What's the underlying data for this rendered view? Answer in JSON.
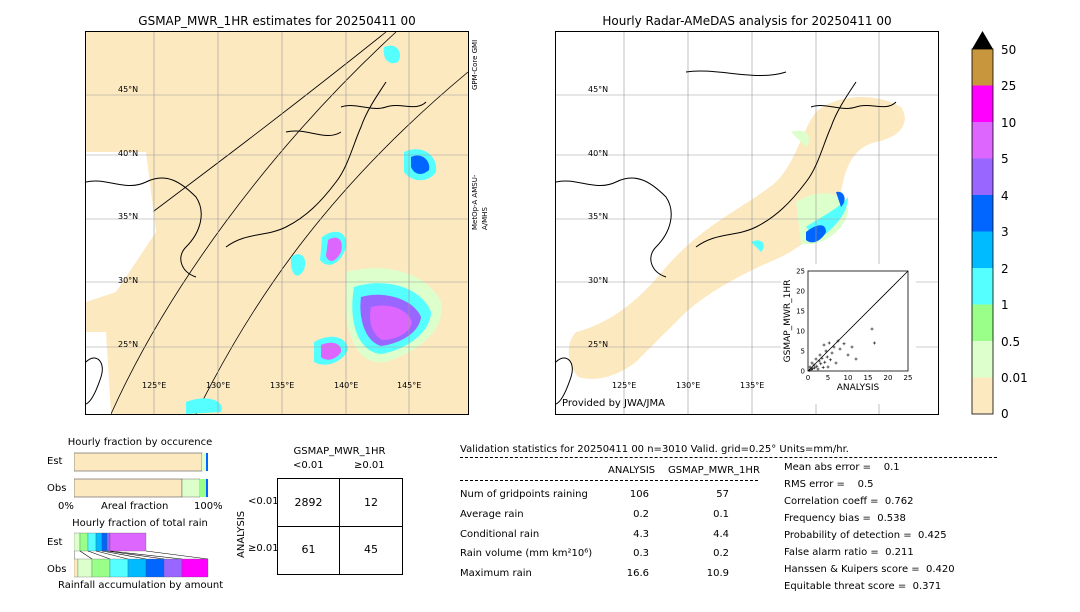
{
  "left_map": {
    "title": "GSMAP_MWR_1HR estimates for 20250411 00",
    "lat_labels": [
      "45°N",
      "40°N",
      "35°N",
      "30°N",
      "25°N"
    ],
    "lon_labels": [
      "125°E",
      "130°E",
      "135°E",
      "140°E",
      "145°E"
    ],
    "side_labels": [
      "GPM-Core GMI",
      "MetOp-A AMSU-A/MHS"
    ]
  },
  "right_map": {
    "title": "Hourly Radar-AMeDAS analysis for 20250411 00",
    "lat_labels": [
      "45°N",
      "40°N",
      "35°N",
      "30°N",
      "25°N"
    ],
    "lon_labels": [
      "125°E",
      "130°E",
      "135°E"
    ],
    "provider": "Provided by JWA/JMA"
  },
  "colorbar": {
    "labels": [
      "50",
      "25",
      "10",
      "5",
      "4",
      "3",
      "2",
      "1",
      "0.5",
      "0.01",
      "0"
    ],
    "colors": [
      "#c8963c",
      "#ff00ff",
      "#dd66ff",
      "#9966ff",
      "#0066ff",
      "#00bbff",
      "#55ffff",
      "#99ff88",
      "#ddffcc",
      "#fde9c0"
    ]
  },
  "chart_data": [
    {
      "type": "scatter",
      "xlabel": "ANALYSIS",
      "ylabel": "GSMAP_MWR_1HR",
      "xlim": [
        0,
        25
      ],
      "ylim": [
        0,
        25
      ],
      "x_ticks": [
        "0",
        "5",
        "10",
        "15",
        "20",
        "25"
      ],
      "y_ticks": [
        "0",
        "5",
        "10",
        "15",
        "20",
        "25"
      ],
      "points": [
        [
          0.3,
          0.2
        ],
        [
          0.5,
          1.0
        ],
        [
          0.8,
          0.4
        ],
        [
          1.0,
          2.0
        ],
        [
          1.2,
          0.6
        ],
        [
          1.5,
          1.5
        ],
        [
          1.7,
          0.8
        ],
        [
          2.0,
          3.0
        ],
        [
          2.2,
          1.2
        ],
        [
          2.5,
          0.5
        ],
        [
          2.8,
          2.5
        ],
        [
          3.0,
          4.0
        ],
        [
          3.2,
          1.8
        ],
        [
          3.5,
          3.2
        ],
        [
          3.8,
          0.9
        ],
        [
          4.0,
          6.5
        ],
        [
          4.2,
          2.2
        ],
        [
          4.5,
          5.0
        ],
        [
          4.8,
          3.5
        ],
        [
          5.0,
          1.0
        ],
        [
          5.3,
          7.0
        ],
        [
          5.6,
          2.8
        ],
        [
          6.0,
          4.5
        ],
        [
          6.5,
          6.0
        ],
        [
          7.0,
          2.0
        ],
        [
          7.5,
          7.5
        ],
        [
          8.0,
          5.5
        ],
        [
          9.0,
          6.8
        ],
        [
          10.0,
          4.0
        ],
        [
          11.0,
          6.0
        ],
        [
          12.0,
          3.0
        ],
        [
          16.0,
          10.5
        ],
        [
          16.6,
          7.0
        ]
      ]
    },
    {
      "type": "bar",
      "title": "Hourly fraction by occurence",
      "categories": [
        "Est",
        "Obs"
      ],
      "xlabel": "Areal fraction",
      "x_ticks": [
        "0%",
        "100%"
      ]
    },
    {
      "type": "bar",
      "title": "Hourly fraction of total rain",
      "categories": [
        "Est",
        "Obs"
      ],
      "xlabel": "Rainfall accumulation by amount"
    }
  ],
  "contingency": {
    "title": "GSMAP_MWR_1HR",
    "col_labels": [
      "<0.01",
      "≥0.01"
    ],
    "row_labels": [
      "<0.01",
      "≥0.01"
    ],
    "axis_label": "ANALYSIS",
    "cells": [
      "2892",
      "12",
      "61",
      "45"
    ]
  },
  "stats": {
    "header": "Validation statistics for 20250411 00  n=3010 Valid. grid=0.25° Units=mm/hr.",
    "col_analysis": "ANALYSIS",
    "col_gsmap": "GSMAP_MWR_1HR",
    "rows": [
      {
        "label": "Num of gridpoints raining",
        "a": "106",
        "g": "57"
      },
      {
        "label": "Average rain",
        "a": "0.2",
        "g": "0.1"
      },
      {
        "label": "Conditional rain",
        "a": "4.3",
        "g": "4.4"
      },
      {
        "label": "Rain volume (mm km²10⁶)",
        "a": "0.3",
        "g": "0.2"
      },
      {
        "label": "Maximum rain",
        "a": "16.6",
        "g": "10.9"
      }
    ],
    "scores": [
      "Mean abs error =    0.1",
      "RMS error =    0.5",
      "Correlation coeff =  0.762",
      "Frequency bias =  0.538",
      "Probability of detection =  0.425",
      "False alarm ratio =  0.211",
      "Hanssen & Kuipers score =  0.420",
      "Equitable threat score =  0.371"
    ]
  }
}
